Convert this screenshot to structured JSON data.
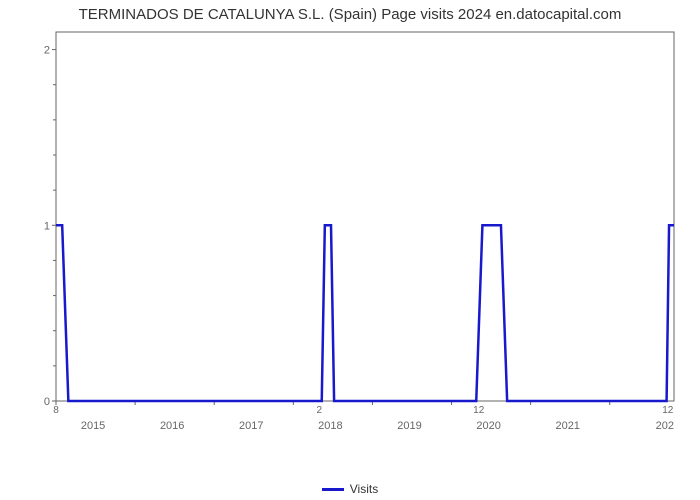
{
  "title": "TERMINADOS DE CATALUNYA S.L. (Spain) Page visits 2024 en.datocapital.com",
  "chart": {
    "type": "line",
    "background_color": "#ffffff",
    "grid_color": "#d9d9d9",
    "axis_color": "#666666",
    "text_color": "#666666",
    "title_color": "#333333",
    "title_fontsize": 15,
    "tick_fontsize": 11,
    "secondary_tick_fontsize": 10,
    "series": {
      "name": "Visits",
      "color": "#1818cc",
      "line_width": 2.5,
      "points": [
        {
          "x": 0.0,
          "y": 1.0
        },
        {
          "x": 0.01,
          "y": 1.0
        },
        {
          "x": 0.02,
          "y": 0.0
        },
        {
          "x": 0.43,
          "y": 0.0
        },
        {
          "x": 0.435,
          "y": 1.0
        },
        {
          "x": 0.445,
          "y": 1.0
        },
        {
          "x": 0.45,
          "y": 0.0
        },
        {
          "x": 0.68,
          "y": 0.0
        },
        {
          "x": 0.69,
          "y": 1.0
        },
        {
          "x": 0.72,
          "y": 1.0
        },
        {
          "x": 0.73,
          "y": 0.0
        },
        {
          "x": 0.988,
          "y": 0.0
        },
        {
          "x": 0.992,
          "y": 1.0
        },
        {
          "x": 1.0,
          "y": 1.0
        }
      ]
    },
    "y_axis": {
      "min": 0,
      "max": 2.1,
      "ticks": [
        0,
        1,
        2
      ],
      "minor_ticks_per_major": 4
    },
    "x_axis": {
      "min": 0,
      "max": 1,
      "labels": [
        "2015",
        "2016",
        "2017",
        "2018",
        "2019",
        "2020",
        "2021",
        "202"
      ],
      "label_positions": [
        0.06,
        0.188,
        0.316,
        0.444,
        0.572,
        0.7,
        0.828,
        0.97
      ],
      "grid_positions": [
        0.0,
        0.128,
        0.256,
        0.384,
        0.512,
        0.64,
        0.768,
        0.896
      ],
      "secondary_labels": [
        {
          "pos": 0.0,
          "text": "8"
        },
        {
          "pos": 0.426,
          "text": "2"
        },
        {
          "pos": 0.684,
          "text": "12"
        },
        {
          "pos": 0.99,
          "text": "12"
        }
      ]
    },
    "legend": {
      "label": "Visits"
    }
  }
}
